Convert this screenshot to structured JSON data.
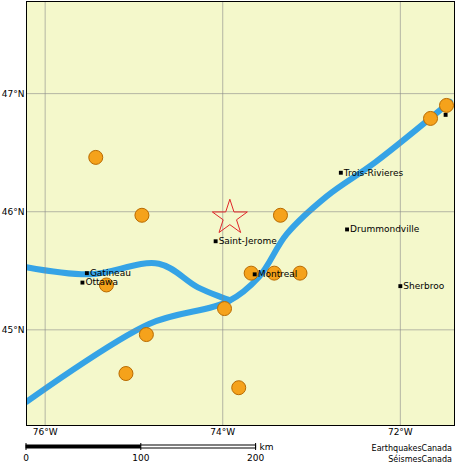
{
  "chart_data": {
    "type": "map",
    "xlim": [
      -76.21,
      -71.39
    ],
    "ylim": [
      44.19,
      47.78
    ],
    "xticks": [
      {
        "value": -76,
        "label": "76°W"
      },
      {
        "value": -74,
        "label": "74°W"
      },
      {
        "value": -72,
        "label": "72°W"
      }
    ],
    "yticks": [
      {
        "value": 45,
        "label": "45°N"
      },
      {
        "value": 46,
        "label": "46°N"
      },
      {
        "value": 47,
        "label": "47°N"
      }
    ],
    "grid": true,
    "rivers": [
      [
        [
          -76.21,
          44.39
        ],
        [
          -74.83,
          45.05
        ],
        [
          -73.94,
          45.24
        ],
        [
          -73.59,
          45.45
        ],
        [
          -73.28,
          45.81
        ],
        [
          -72.83,
          46.13
        ],
        [
          -72.28,
          46.42
        ],
        [
          -71.44,
          46.93
        ]
      ],
      [
        [
          -76.21,
          45.53
        ],
        [
          -75.5,
          45.47
        ],
        [
          -74.72,
          45.56
        ],
        [
          -74.28,
          45.36
        ],
        [
          -73.92,
          45.25
        ]
      ]
    ],
    "cities": [
      {
        "name": "Gatineau",
        "lon": -75.53,
        "lat": 45.48
      },
      {
        "name": "Ottawa",
        "lon": -75.58,
        "lat": 45.4
      },
      {
        "name": "Saint-Jerome",
        "lon": -74.08,
        "lat": 45.75
      },
      {
        "name": "Montreal",
        "lon": -73.64,
        "lat": 45.47
      },
      {
        "name": "Trois-Rivieres",
        "lon": -72.67,
        "lat": 46.33
      },
      {
        "name": "Drummondville",
        "lon": -72.6,
        "lat": 45.85
      },
      {
        "name": "Sherbroo",
        "lon": -72.0,
        "lat": 45.37
      },
      {
        "name": null,
        "lon": -71.49,
        "lat": 46.82
      }
    ],
    "events": [
      {
        "lon": -75.43,
        "lat": 46.46
      },
      {
        "lon": -74.91,
        "lat": 45.97
      },
      {
        "lon": -75.31,
        "lat": 45.38
      },
      {
        "lon": -74.86,
        "lat": 44.96
      },
      {
        "lon": -75.09,
        "lat": 44.63
      },
      {
        "lon": -73.82,
        "lat": 44.51
      },
      {
        "lon": -73.98,
        "lat": 45.18
      },
      {
        "lon": -73.68,
        "lat": 45.48
      },
      {
        "lon": -73.42,
        "lat": 45.48
      },
      {
        "lon": -73.13,
        "lat": 45.48
      },
      {
        "lon": -73.35,
        "lat": 45.97
      },
      {
        "lon": -71.66,
        "lat": 46.79
      },
      {
        "lon": -71.48,
        "lat": 46.9
      }
    ],
    "epicentre": {
      "lon": -73.92,
      "lat": 45.95
    },
    "scale_bar": {
      "ticks": [
        0,
        100,
        200
      ],
      "unit": "km"
    },
    "credits": [
      "EarthquakesCanada",
      "SéismesCanada"
    ]
  }
}
